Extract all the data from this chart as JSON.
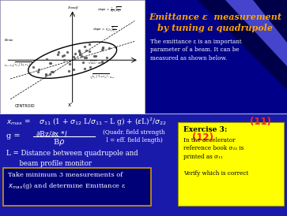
{
  "title_line1": "Emittance ε  measurement",
  "title_line2": "by tuning a quadrupole",
  "title_color": "#FFA500",
  "bg_color_main": "#1a1aaa",
  "desc_text": "The emittance ε is an important\nparameter of a beam. It can be\nmeasured as shown below.",
  "white": "#FFFFFF",
  "red_label": "#FF2222",
  "box1_bg": "#1a1a99",
  "box2_bg": "#FFFF00",
  "dark_navy": "#000066",
  "mid_blue": "#2222aa"
}
